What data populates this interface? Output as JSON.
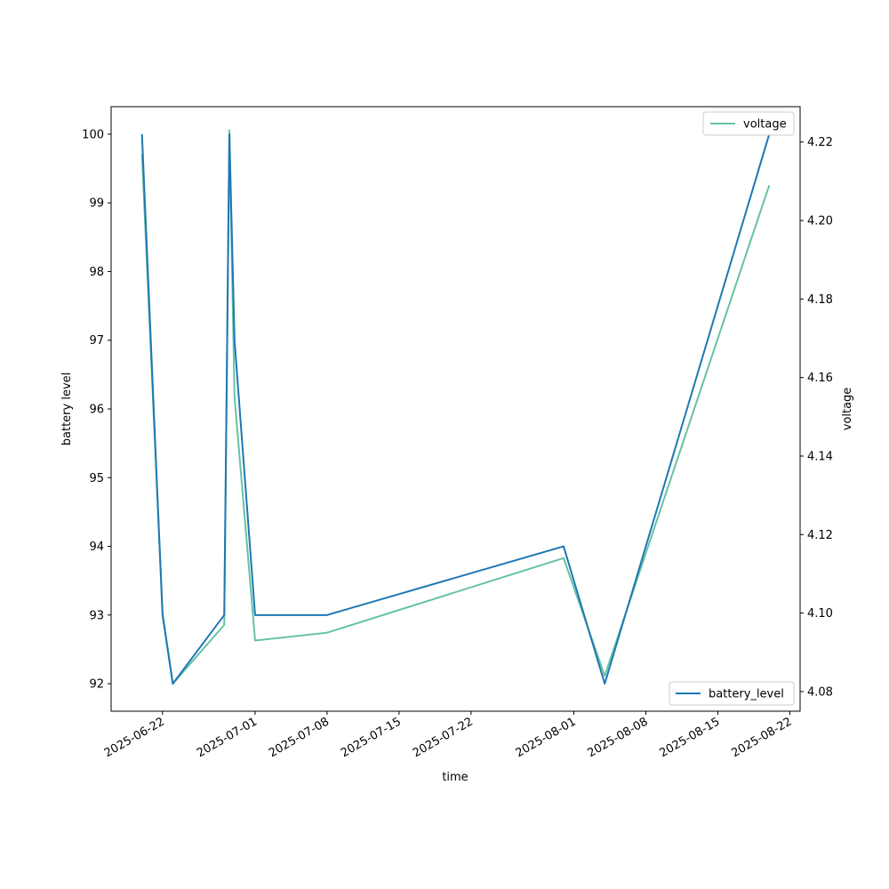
{
  "chart_data": {
    "type": "line",
    "xlabel": "time",
    "ylabel_left": "battery level",
    "ylabel_right": "voltage",
    "x_tick_labels": [
      "2025-06-22",
      "2025-07-01",
      "2025-07-08",
      "2025-07-15",
      "2025-07-22",
      "2025-08-01",
      "2025-08-08",
      "2025-08-15",
      "2025-08-22"
    ],
    "x_range": [
      "2025-06-17",
      "2025-08-23"
    ],
    "y_left_ticks": [
      "92",
      "93",
      "94",
      "95",
      "96",
      "97",
      "98",
      "99",
      "100"
    ],
    "y_left_range": [
      91.6,
      100.4
    ],
    "y_right_ticks": [
      "4.08",
      "4.10",
      "4.12",
      "4.14",
      "4.16",
      "4.18",
      "4.20",
      "4.22"
    ],
    "y_right_range": [
      4.075,
      4.229
    ],
    "grid": false,
    "series": [
      {
        "name": "battery_level",
        "axis": "left",
        "color": "#1f77b4",
        "legend_position": "lower-right",
        "points": [
          {
            "x": "2025-06-20",
            "y": 100
          },
          {
            "x": "2025-06-22",
            "y": 93
          },
          {
            "x": "2025-06-23",
            "y": 92
          },
          {
            "x": "2025-06-28",
            "y": 93
          },
          {
            "x": "2025-06-28T12:00",
            "y": 100
          },
          {
            "x": "2025-06-29",
            "y": 97
          },
          {
            "x": "2025-07-01",
            "y": 93
          },
          {
            "x": "2025-07-08",
            "y": 93
          },
          {
            "x": "2025-07-31",
            "y": 94
          },
          {
            "x": "2025-08-04",
            "y": 92
          },
          {
            "x": "2025-08-20",
            "y": 100
          }
        ]
      },
      {
        "name": "voltage",
        "axis": "right",
        "color": "#66c2a5",
        "legend_position": "upper-right",
        "points": [
          {
            "x": "2025-06-20",
            "y": 4.217
          },
          {
            "x": "2025-06-22",
            "y": 4.1
          },
          {
            "x": "2025-06-23",
            "y": 4.082
          },
          {
            "x": "2025-06-28",
            "y": 4.097
          },
          {
            "x": "2025-06-28T12:00",
            "y": 4.223
          },
          {
            "x": "2025-06-29",
            "y": 4.155
          },
          {
            "x": "2025-07-01",
            "y": 4.093
          },
          {
            "x": "2025-07-08",
            "y": 4.095
          },
          {
            "x": "2025-07-31",
            "y": 4.114
          },
          {
            "x": "2025-08-04",
            "y": 4.084
          },
          {
            "x": "2025-08-20",
            "y": 4.209
          }
        ]
      }
    ]
  }
}
